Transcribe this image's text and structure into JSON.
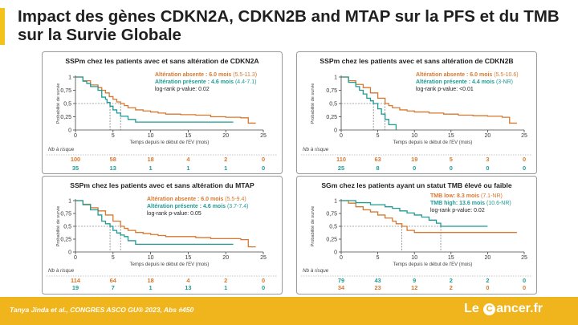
{
  "title": "Impact des gènes CDKN2A, CDKN2B and MTAP sur la PFS et du TMB sur la Survie Globale",
  "footer": {
    "citation": "Tanya Jinda et al., CONGRES ASCO GU® 2023, Abs #450",
    "logo_left": "Le ",
    "logo_o": "C",
    "logo_right": "ancer.fr"
  },
  "colors": {
    "orange": "#d6782f",
    "teal": "#1f9b96",
    "accent": "#f3c21b",
    "footer": "#f0b41c"
  },
  "chart_data": [
    {
      "type": "line",
      "title": "SSPm chez les patients avec et sans altération de CDKN2A",
      "xlabel": "Temps depuis le début de l'EV (mois)",
      "ylabel": "Probabilité de survie",
      "xlim": [
        0,
        25
      ],
      "ylim": [
        0,
        1
      ],
      "xticks": [
        "0",
        "5",
        "10",
        "15",
        "20",
        "25"
      ],
      "yticks": [
        "0",
        "0,25",
        "0,5",
        "0,75",
        "1"
      ],
      "median_line": 0.5,
      "annotations": [
        {
          "label": "Altération absente : 6.0 mois",
          "ci": " (5.5-11.3)",
          "color": "#d6782f"
        },
        {
          "label": "Altération présente : 4.6 mois",
          "ci": " (4.4-7.1)",
          "color": "#1f9b96"
        },
        {
          "label": "log-rank p-value: 0.02",
          "ci": "",
          "color": "#1f1f1f"
        }
      ],
      "series": [
        {
          "color": "#d6782f",
          "median": 6.0,
          "x": [
            0,
            1,
            2,
            3,
            3.5,
            4,
            4.5,
            5,
            5.5,
            6,
            6.5,
            7,
            8,
            9,
            10,
            11,
            12,
            14,
            16,
            18,
            20,
            22,
            23,
            24
          ],
          "y": [
            1,
            0.93,
            0.85,
            0.8,
            0.75,
            0.7,
            0.63,
            0.58,
            0.53,
            0.5,
            0.46,
            0.42,
            0.38,
            0.36,
            0.34,
            0.32,
            0.3,
            0.29,
            0.28,
            0.25,
            0.24,
            0.23,
            0.13,
            0.13
          ]
        },
        {
          "color": "#1f9b96",
          "median": 4.6,
          "x": [
            0,
            1,
            1.5,
            2,
            3,
            3.5,
            4,
            4.2,
            4.6,
            5,
            5.5,
            6,
            7,
            8,
            21
          ],
          "y": [
            1,
            0.92,
            0.88,
            0.82,
            0.75,
            0.62,
            0.58,
            0.52,
            0.45,
            0.38,
            0.32,
            0.26,
            0.2,
            0.15,
            0.15
          ]
        }
      ],
      "risk_table": {
        "label": "Nb à risque",
        "rows": [
          {
            "color": "#d6782f",
            "values": [
              "100",
              "58",
              "18",
              "4",
              "2",
              "0"
            ]
          },
          {
            "color": "#1f9b96",
            "values": [
              "35",
              "13",
              "1",
              "1",
              "1",
              "0"
            ]
          }
        ]
      }
    },
    {
      "type": "line",
      "title": "SSPm chez les patients avec et sans altération de CDKN2B",
      "xlabel": "Temps depuis le début de l'EV (mois)",
      "ylabel": "Probabilité de survie",
      "xlim": [
        0,
        25
      ],
      "ylim": [
        0,
        1
      ],
      "xticks": [
        "0",
        "5",
        "10",
        "15",
        "20",
        "25"
      ],
      "yticks": [
        "0",
        "0,25",
        "0,5",
        "0,75",
        "1"
      ],
      "median_line": 0.5,
      "annotations": [
        {
          "label": "Altération absente : 6.0 mois",
          "ci": " (5.5-10.6)",
          "color": "#d6782f"
        },
        {
          "label": "Altération présente : 4.4 mois",
          "ci": " (3-NR)",
          "color": "#1f9b96"
        },
        {
          "label": "log-rank p-value: <0.01",
          "ci": "",
          "color": "#1f1f1f"
        }
      ],
      "series": [
        {
          "color": "#d6782f",
          "median": 6.0,
          "x": [
            0,
            1,
            2,
            3,
            4,
            5,
            6,
            6.5,
            7,
            8,
            9,
            10,
            12,
            14,
            16,
            18,
            20,
            22,
            23,
            24
          ],
          "y": [
            1,
            0.93,
            0.86,
            0.8,
            0.7,
            0.6,
            0.5,
            0.46,
            0.42,
            0.38,
            0.36,
            0.34,
            0.32,
            0.3,
            0.28,
            0.27,
            0.26,
            0.24,
            0.13,
            0.13
          ]
        },
        {
          "color": "#1f9b96",
          "median": 4.4,
          "x": [
            0,
            1,
            2,
            2.5,
            3,
            3.5,
            4,
            4.4,
            5,
            5.5,
            6,
            6.5,
            7.5
          ],
          "y": [
            1,
            0.9,
            0.82,
            0.75,
            0.68,
            0.6,
            0.55,
            0.5,
            0.4,
            0.3,
            0.2,
            0.1,
            0
          ]
        }
      ],
      "risk_table": {
        "label": "Nb à risque",
        "rows": [
          {
            "color": "#d6782f",
            "values": [
              "110",
              "63",
              "19",
              "5",
              "3",
              "0"
            ]
          },
          {
            "color": "#1f9b96",
            "values": [
              "25",
              "8",
              "0",
              "0",
              "0",
              "0"
            ]
          }
        ]
      }
    },
    {
      "type": "line",
      "title": "SSPm chez les patients avec et sans altération du MTAP",
      "xlabel": "Temps depuis le début de l'EV (mois)",
      "ylabel": "Probabilité de survie",
      "xlim": [
        0,
        25
      ],
      "ylim": [
        0,
        1
      ],
      "xticks": [
        "0",
        "5",
        "10",
        "15",
        "20",
        "25"
      ],
      "yticks": [
        "0",
        "0,25",
        "0,5",
        "0,75",
        "1"
      ],
      "median_line": 0.5,
      "annotations": [
        {
          "label": "Altération absente : 6.0 mois",
          "ci": " (5.5-9.4)",
          "color": "#d6782f"
        },
        {
          "label": "Altération présente : 4.6 mois",
          "ci": " (3.7-7.4)",
          "color": "#1f9b96"
        },
        {
          "label": "log-rank p-value: 0.05",
          "ci": "",
          "color": "#1f1f1f"
        }
      ],
      "series": [
        {
          "color": "#d6782f",
          "median": 6.0,
          "x": [
            0,
            1,
            2,
            3,
            4,
            5,
            6,
            6.5,
            7,
            8,
            9,
            10,
            11,
            12,
            14,
            16,
            18,
            20,
            22,
            23,
            24
          ],
          "y": [
            1,
            0.93,
            0.86,
            0.8,
            0.72,
            0.6,
            0.5,
            0.46,
            0.42,
            0.38,
            0.36,
            0.34,
            0.32,
            0.3,
            0.3,
            0.28,
            0.26,
            0.26,
            0.24,
            0.1,
            0.1
          ]
        },
        {
          "color": "#1f9b96",
          "median": 4.6,
          "x": [
            0,
            1,
            2,
            3,
            3.5,
            4,
            4.6,
            5,
            5.5,
            6,
            6.5,
            7,
            8,
            11,
            21
          ],
          "y": [
            1,
            0.92,
            0.82,
            0.72,
            0.6,
            0.55,
            0.5,
            0.42,
            0.37,
            0.33,
            0.3,
            0.22,
            0.15,
            0.15,
            0.15
          ]
        }
      ],
      "risk_table": {
        "label": "Nb à risque",
        "rows": [
          {
            "color": "#d6782f",
            "values": [
              "114",
              "64",
              "18",
              "4",
              "2",
              "0"
            ]
          },
          {
            "color": "#1f9b96",
            "values": [
              "19",
              "7",
              "1",
              "13",
              "1",
              "0"
            ]
          }
        ]
      }
    },
    {
      "type": "line",
      "title": "SGm chez les patients ayant un statut TMB élevé ou faible",
      "xlabel": "Temps depuis le début de l'EV (mois)",
      "ylabel": "Probabilité de survie",
      "xlim": [
        0,
        25
      ],
      "ylim": [
        0,
        1
      ],
      "xticks": [
        "0",
        "5",
        "10",
        "15",
        "20",
        "25"
      ],
      "yticks": [
        "0",
        "0,25",
        "0,5",
        "0,75",
        "1"
      ],
      "median_line": 0.5,
      "annotations": [
        {
          "label": "TMB low: 8.3 mois",
          "ci": " (7.1-NR)",
          "color": "#d6782f"
        },
        {
          "label": "TMB high: 13.6 mois",
          "ci": " (10.6-NR)",
          "color": "#1f9b96"
        },
        {
          "label": "log-rank p-value: 0.02",
          "ci": "",
          "color": "#1f1f1f"
        }
      ],
      "series": [
        {
          "color": "#d6782f",
          "median": 8.3,
          "x": [
            0,
            1,
            2,
            3,
            4,
            5,
            6,
            7,
            7.5,
            8.3,
            9,
            10,
            12,
            14,
            16,
            18,
            21,
            24
          ],
          "y": [
            1,
            0.95,
            0.88,
            0.82,
            0.78,
            0.72,
            0.66,
            0.6,
            0.55,
            0.5,
            0.42,
            0.38,
            0.38,
            0.38,
            0.38,
            0.38,
            0.38,
            0.38
          ]
        },
        {
          "color": "#1f9b96",
          "median": 13.6,
          "x": [
            0,
            2,
            4,
            6,
            7,
            8,
            9,
            10,
            11,
            12,
            13,
            13.6,
            14,
            16,
            18,
            20
          ],
          "y": [
            1,
            0.96,
            0.92,
            0.88,
            0.85,
            0.8,
            0.76,
            0.72,
            0.68,
            0.62,
            0.56,
            0.5,
            0.5,
            0.5,
            0.5,
            0.5
          ]
        }
      ],
      "risk_table": {
        "label": "Nb à risque",
        "rows": [
          {
            "color": "#1f9b96",
            "values": [
              "79",
              "43",
              "9",
              "2",
              "2",
              "0"
            ]
          },
          {
            "color": "#d6782f",
            "values": [
              "34",
              "23",
              "12",
              "2",
              "0",
              "0"
            ]
          }
        ]
      }
    }
  ]
}
